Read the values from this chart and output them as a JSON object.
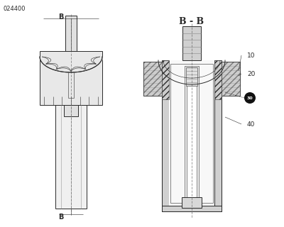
{
  "bg_color": "#ffffff",
  "line_color": "#2a2a2a",
  "light_gray": "#d8d8d8",
  "mid_gray": "#aaaaaa",
  "dark_gray": "#666666",
  "white": "#ffffff",
  "code_text": "024400",
  "bb_title": "B - B",
  "label_10": "10",
  "label_20": "20",
  "label_30": "30",
  "label_40": "40"
}
